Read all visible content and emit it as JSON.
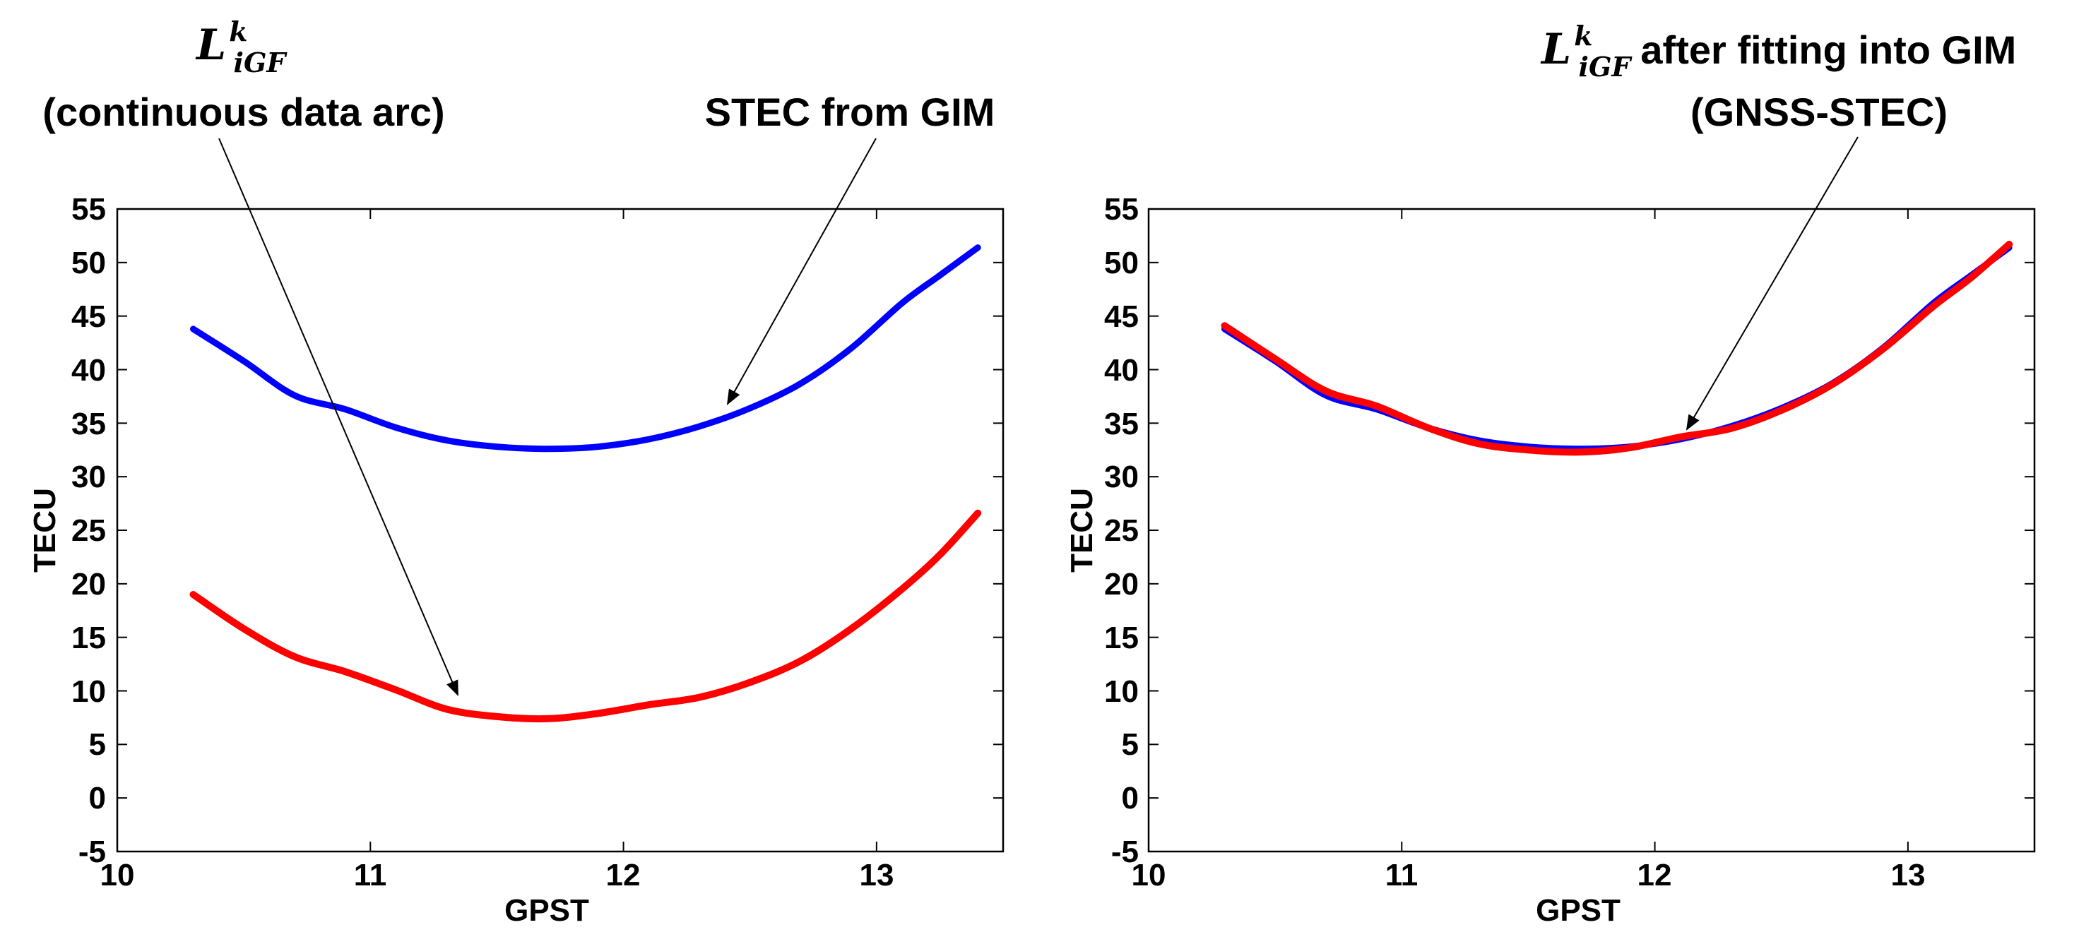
{
  "chart_data": [
    {
      "type": "line",
      "title": "",
      "xlabel": "GPST",
      "ylabel": "TECU",
      "xlim": [
        10,
        13.5
      ],
      "ylim": [
        -5,
        55
      ],
      "xticks": [
        "10",
        "11",
        "12",
        "13"
      ],
      "yticks": [
        "-5",
        "0",
        "5",
        "10",
        "15",
        "20",
        "25",
        "30",
        "35",
        "40",
        "45",
        "50",
        "55"
      ],
      "grid": false,
      "x": [
        10.3,
        10.5,
        10.7,
        10.9,
        11.1,
        11.3,
        11.5,
        11.7,
        11.9,
        12.1,
        12.3,
        12.5,
        12.7,
        12.9,
        13.1,
        13.25,
        13.4
      ],
      "series": [
        {
          "name": "STEC from GIM",
          "color": "#0000ff",
          "values": [
            43.8,
            40.8,
            37.6,
            36.3,
            34.6,
            33.4,
            32.8,
            32.6,
            32.8,
            33.5,
            34.7,
            36.4,
            38.7,
            42.0,
            46.2,
            48.8,
            51.4
          ]
        },
        {
          "name": "L_iGF continuous data arc",
          "color": "#ff0000",
          "values": [
            19.0,
            15.8,
            13.2,
            11.8,
            10.1,
            8.3,
            7.6,
            7.4,
            7.9,
            8.7,
            9.4,
            10.8,
            12.8,
            15.8,
            19.5,
            22.7,
            26.6
          ]
        }
      ],
      "annotations": [
        {
          "main": "L",
          "sup": "k",
          "sub": "iGF",
          "text": "(continuous data arc)",
          "points_to": {
            "x": 11.35,
            "y": 8.8
          }
        },
        {
          "text": "STEC from GIM",
          "points_to": {
            "x": 12.43,
            "y": 36.5
          }
        }
      ]
    },
    {
      "type": "line",
      "title": "",
      "xlabel": "GPST",
      "ylabel": "TECU",
      "xlim": [
        10,
        13.5
      ],
      "ylim": [
        -5,
        55
      ],
      "xticks": [
        "10",
        "11",
        "12",
        "13"
      ],
      "yticks": [
        "-5",
        "0",
        "5",
        "10",
        "15",
        "20",
        "25",
        "30",
        "35",
        "40",
        "45",
        "50",
        "55"
      ],
      "grid": false,
      "x": [
        10.3,
        10.5,
        10.7,
        10.9,
        11.1,
        11.3,
        11.5,
        11.7,
        11.9,
        12.1,
        12.3,
        12.5,
        12.7,
        12.9,
        13.1,
        13.25,
        13.4
      ],
      "series": [
        {
          "name": "STEC from GIM",
          "color": "#0000ff",
          "values": [
            43.8,
            40.8,
            37.6,
            36.3,
            34.6,
            33.4,
            32.8,
            32.6,
            32.8,
            33.5,
            34.7,
            36.4,
            38.7,
            42.0,
            46.2,
            48.8,
            51.4
          ]
        },
        {
          "name": "GNSS-STEC",
          "color": "#ff0000",
          "values": [
            44.1,
            41.0,
            38.0,
            36.6,
            34.6,
            33.1,
            32.5,
            32.3,
            32.7,
            33.7,
            34.5,
            36.2,
            38.6,
            41.9,
            45.9,
            48.6,
            51.7
          ]
        }
      ],
      "annotations": [
        {
          "main": "L",
          "sup": "k",
          "sub": "iGF",
          "text": "after fitting into GIM",
          "text2": "(GNSS-STEC)",
          "points_to": {
            "x": 12.1,
            "y": 34.2
          }
        }
      ]
    }
  ]
}
